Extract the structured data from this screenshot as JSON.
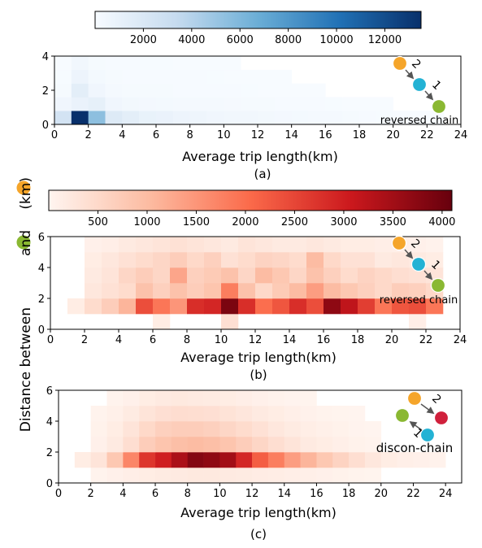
{
  "figure": {
    "shared_ylabel_parts": [
      "Distance between",
      "and",
      "(km)"
    ],
    "ylabel_marker_colors": [
      "#8ab832",
      "#f5a52a"
    ],
    "node_colors": {
      "orange": "#f5a52a",
      "cyan": "#23b2d4",
      "green": "#8ab832",
      "red": "#d0203c"
    }
  },
  "chart_data": [
    {
      "type": "heatmap",
      "panel_label": "(a)",
      "xlabel": "Average trip length(km)",
      "xlim": [
        0,
        24
      ],
      "ylim": [
        0,
        4
      ],
      "xticks": [
        0,
        2,
        4,
        6,
        8,
        10,
        12,
        14,
        16,
        18,
        20,
        22,
        24
      ],
      "yticks": [
        0,
        2,
        4
      ],
      "colormap": "Blues",
      "colorbar": {
        "min": 0,
        "max": 13500,
        "ticks": [
          2000,
          4000,
          6000,
          8000,
          10000,
          12000
        ],
        "placement": "top"
      },
      "bin_width": [
        1,
        0.8
      ],
      "x_bins": [
        0,
        1,
        2,
        3,
        4,
        5,
        6,
        7,
        8,
        9,
        10,
        11,
        12,
        13,
        14,
        15,
        16,
        17,
        18,
        19,
        20,
        21,
        22,
        23
      ],
      "y_bins": [
        0,
        0.8,
        1.6,
        2.4,
        3.2
      ],
      "values": [
        [
          2500,
          13500,
          5500,
          1800,
          1400,
          1000,
          900,
          700,
          600,
          500,
          420,
          380,
          340,
          300,
          260,
          220,
          200,
          120,
          60,
          40,
          30,
          20,
          10,
          0
        ],
        [
          500,
          900,
          1200,
          500,
          350,
          300,
          260,
          220,
          200,
          180,
          160,
          140,
          120,
          100,
          80,
          60,
          40,
          20,
          10,
          5,
          0,
          0,
          0,
          0
        ],
        [
          150,
          1400,
          500,
          200,
          150,
          130,
          110,
          100,
          90,
          80,
          60,
          40,
          30,
          20,
          10,
          5,
          0,
          0,
          0,
          0,
          0,
          0,
          0,
          0
        ],
        [
          40,
          700,
          250,
          120,
          100,
          90,
          80,
          70,
          60,
          50,
          30,
          20,
          10,
          5,
          0,
          0,
          0,
          0,
          0,
          0,
          0,
          0,
          0,
          0
        ],
        [
          10,
          400,
          150,
          80,
          60,
          50,
          40,
          30,
          20,
          10,
          5,
          0,
          0,
          0,
          0,
          0,
          0,
          0,
          0,
          0,
          0,
          0,
          0,
          0
        ]
      ],
      "inset": {
        "label": "reversed chain",
        "edges": [
          "2",
          "1"
        ]
      }
    },
    {
      "type": "heatmap",
      "panel_label": "(b)",
      "xlabel": "Average trip length(km)",
      "xlim": [
        0,
        24
      ],
      "ylim": [
        0,
        6
      ],
      "xticks": [
        0,
        2,
        4,
        6,
        8,
        10,
        12,
        14,
        16,
        18,
        20,
        22,
        24
      ],
      "yticks": [
        0,
        2,
        4,
        6
      ],
      "colormap": "Reds",
      "colorbar": {
        "min": 0,
        "max": 4100,
        "ticks": [
          500,
          1000,
          1500,
          2000,
          2500,
          3000,
          3500,
          4000
        ],
        "placement": "top"
      },
      "bin_width": [
        1,
        1
      ],
      "x_bins": [
        0,
        1,
        2,
        3,
        4,
        5,
        6,
        7,
        8,
        9,
        10,
        11,
        12,
        13,
        14,
        15,
        16,
        17,
        18,
        19,
        20,
        21,
        22,
        23
      ],
      "y_bins": [
        0,
        1,
        2,
        3,
        4,
        5
      ],
      "values": [
        [
          0,
          0,
          0,
          0,
          0,
          0,
          150,
          0,
          0,
          0,
          380,
          0,
          0,
          0,
          0,
          0,
          0,
          0,
          0,
          0,
          0,
          120,
          0,
          0
        ],
        [
          0,
          150,
          450,
          700,
          1100,
          2400,
          1900,
          1500,
          2800,
          2900,
          3900,
          2800,
          2000,
          2300,
          2800,
          2400,
          3700,
          3200,
          2600,
          1900,
          2300,
          2400,
          1900,
          0
        ],
        [
          0,
          0,
          250,
          350,
          450,
          900,
          650,
          900,
          700,
          850,
          1800,
          900,
          500,
          750,
          1000,
          1400,
          1000,
          800,
          650,
          500,
          700,
          650,
          500,
          0
        ],
        [
          0,
          0,
          200,
          300,
          550,
          700,
          550,
          1300,
          650,
          750,
          900,
          550,
          1000,
          800,
          550,
          900,
          650,
          450,
          600,
          500,
          400,
          350,
          300,
          0
        ],
        [
          0,
          0,
          150,
          250,
          350,
          450,
          550,
          700,
          500,
          650,
          350,
          450,
          600,
          550,
          450,
          1000,
          500,
          350,
          350,
          200,
          250,
          200,
          150,
          0
        ],
        [
          0,
          0,
          80,
          120,
          200,
          250,
          300,
          350,
          300,
          250,
          200,
          300,
          250,
          200,
          200,
          250,
          200,
          150,
          150,
          120,
          100,
          80,
          50,
          0
        ]
      ],
      "inset": {
        "label": "reversed chain",
        "edges": [
          "2",
          "1"
        ]
      }
    },
    {
      "type": "heatmap",
      "panel_label": "(c)",
      "xlabel": "Average trip length(km)",
      "xlim": [
        0,
        25
      ],
      "ylim": [
        0,
        6
      ],
      "xticks": [
        0,
        2,
        4,
        6,
        8,
        10,
        12,
        14,
        16,
        18,
        20,
        22,
        24
      ],
      "yticks": [
        0,
        2,
        4,
        6
      ],
      "colormap": "Reds",
      "colorbar": {
        "min": 0,
        "max": 4100
      },
      "bin_width": [
        1,
        1
      ],
      "x_bins": [
        0,
        1,
        2,
        3,
        4,
        5,
        6,
        7,
        8,
        9,
        10,
        11,
        12,
        13,
        14,
        15,
        16,
        17,
        18,
        19,
        20,
        21,
        22,
        23,
        24
      ],
      "y_bins": [
        0,
        1,
        2,
        3,
        4,
        5
      ],
      "values": [
        [
          0,
          0,
          40,
          80,
          120,
          150,
          180,
          200,
          220,
          220,
          200,
          180,
          160,
          140,
          120,
          100,
          80,
          60,
          40,
          20,
          0,
          0,
          0,
          0,
          0
        ],
        [
          0,
          150,
          300,
          800,
          1700,
          2700,
          3000,
          3400,
          3800,
          3700,
          3500,
          2900,
          2200,
          1800,
          1400,
          1100,
          800,
          600,
          400,
          250,
          150,
          100,
          80,
          50,
          0
        ],
        [
          0,
          0,
          80,
          200,
          400,
          700,
          850,
          950,
          1000,
          950,
          850,
          700,
          550,
          400,
          300,
          200,
          150,
          100,
          60,
          40,
          0,
          0,
          0,
          0,
          0
        ],
        [
          0,
          0,
          60,
          150,
          300,
          500,
          650,
          700,
          700,
          650,
          550,
          450,
          350,
          250,
          180,
          130,
          90,
          60,
          30,
          10,
          0,
          0,
          0,
          0,
          0
        ],
        [
          0,
          0,
          40,
          90,
          180,
          300,
          380,
          420,
          400,
          380,
          320,
          260,
          200,
          150,
          100,
          70,
          40,
          20,
          10,
          0,
          0,
          0,
          0,
          0,
          0
        ],
        [
          0,
          0,
          0,
          40,
          80,
          150,
          200,
          220,
          200,
          180,
          150,
          120,
          80,
          50,
          30,
          20,
          0,
          0,
          0,
          0,
          0,
          0,
          0,
          0,
          0
        ]
      ],
      "inset": {
        "label": "discon-chain",
        "edges": [
          "2",
          "1"
        ]
      }
    }
  ]
}
